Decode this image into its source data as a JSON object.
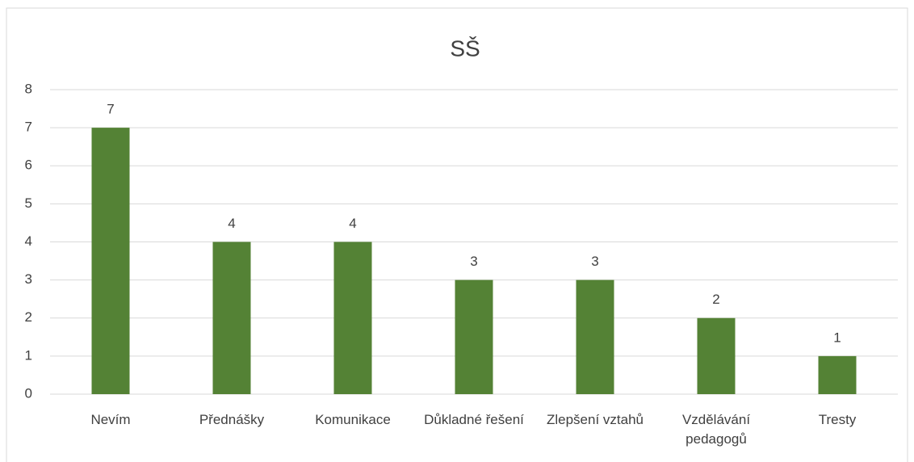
{
  "chart_data": {
    "type": "bar",
    "title": "SŠ",
    "categories": [
      "Nevím",
      "Přednášky",
      "Komunikace",
      "Důkladné řešení",
      "Zlepšení vztahů",
      "Vzdělávání pedagogů",
      "Tresty"
    ],
    "values": [
      7,
      4,
      4,
      3,
      3,
      2,
      1
    ],
    "color": "#548235",
    "ylim": [
      0,
      8
    ],
    "yticks": [
      0,
      1,
      2,
      3,
      4,
      5,
      6,
      7,
      8
    ],
    "grid": true
  }
}
